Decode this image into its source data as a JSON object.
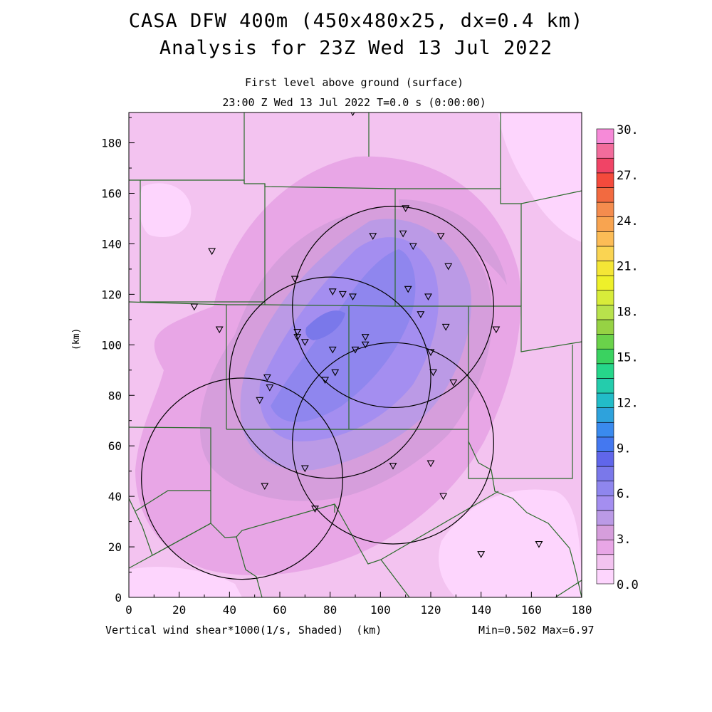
{
  "title": {
    "line1": "CASA DFW 400m (450x480x25, dx=0.4 km)",
    "line2": "Analysis for 23Z Wed 13 Jul 2022"
  },
  "subtitle": {
    "level": "First level above ground (surface)",
    "time": "23:00 Z Wed 13 Jul 2022   T=0.0 s (0:00:00)"
  },
  "axes": {
    "x_label": "(km)",
    "y_label": "(km)",
    "x_ticks": [
      "0",
      "20",
      "40",
      "60",
      "80",
      "100",
      "120",
      "140",
      "160",
      "180"
    ],
    "y_ticks": [
      "0",
      "20",
      "40",
      "60",
      "80",
      "100",
      "120",
      "140",
      "160",
      "180"
    ]
  },
  "footer": {
    "variable": "Vertical wind shear*1000(1/s, Shaded)",
    "minmax": "Min=0.502 Max=6.97"
  },
  "colorbar": {
    "labels": [
      "30.",
      "27.",
      "24.",
      "21.",
      "18.",
      "15.",
      "12.",
      "9.",
      "6.",
      "3.",
      "0.0"
    ],
    "colors": [
      "#fdd5fd",
      "#f3c3f0",
      "#e8a6e6",
      "#d69edc",
      "#bb9ae6",
      "#a48ef0",
      "#8f86ee",
      "#7a78ea",
      "#6066ea",
      "#4478f0",
      "#3a8aee",
      "#2ea2dc",
      "#22bcc8",
      "#24ccac",
      "#26d68a",
      "#3ad260",
      "#6ad24a",
      "#96d244",
      "#b8e24c",
      "#d8ec3a",
      "#eef02a",
      "#f4e636",
      "#fad452",
      "#fcbc56",
      "#f8a450",
      "#f48c4e",
      "#f26a40",
      "#f44a3c",
      "#f04466",
      "#f26c9c",
      "#f68ad8"
    ]
  },
  "chart_data": {
    "type": "heatmap",
    "variable": "Vertical wind shear*1000(1/s, Shaded)",
    "units": "km",
    "xlim": [
      0,
      180
    ],
    "ylim": [
      0,
      192
    ],
    "color_scale": [
      0,
      30
    ],
    "min": 0.502,
    "max": 6.97,
    "radar_range_circles": [
      {
        "center_km": [
          105,
          115
        ],
        "radius_km": 40
      },
      {
        "center_km": [
          80,
          87
        ],
        "radius_km": 40
      },
      {
        "center_km": [
          105,
          61
        ],
        "radius_km": 40
      },
      {
        "center_km": [
          45,
          47
        ],
        "radius_km": 40
      }
    ],
    "stations_km": [
      [
        89,
        192
      ],
      [
        110,
        154
      ],
      [
        97,
        143
      ],
      [
        109,
        144
      ],
      [
        113,
        139
      ],
      [
        124,
        143
      ],
      [
        127,
        131
      ],
      [
        33,
        137
      ],
      [
        66,
        126
      ],
      [
        81,
        121
      ],
      [
        85,
        120
      ],
      [
        89,
        119
      ],
      [
        111,
        122
      ],
      [
        119,
        119
      ],
      [
        116,
        112
      ],
      [
        26,
        115
      ],
      [
        36,
        106
      ],
      [
        67,
        105
      ],
      [
        67,
        103
      ],
      [
        70,
        101
      ],
      [
        126,
        107
      ],
      [
        146,
        106
      ],
      [
        94,
        103
      ],
      [
        94,
        100
      ],
      [
        81,
        98
      ],
      [
        90,
        98
      ],
      [
        120,
        97
      ],
      [
        82,
        89
      ],
      [
        78,
        86
      ],
      [
        121,
        89
      ],
      [
        129,
        85
      ],
      [
        55,
        87
      ],
      [
        56,
        83
      ],
      [
        52,
        78
      ],
      [
        70,
        51
      ],
      [
        105,
        52
      ],
      [
        120,
        53
      ],
      [
        54,
        44
      ],
      [
        74,
        35
      ],
      [
        125,
        40
      ],
      [
        140,
        17
      ],
      [
        163,
        21
      ]
    ]
  }
}
